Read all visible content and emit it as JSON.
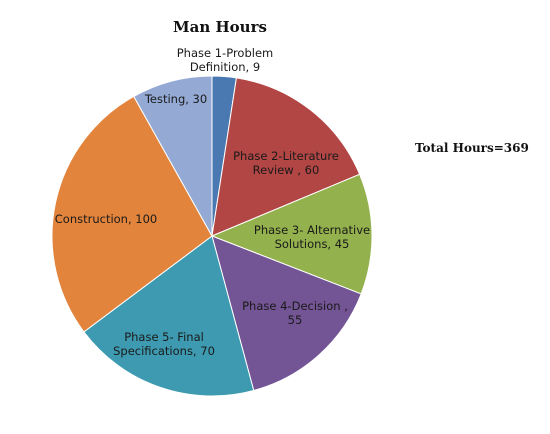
{
  "chart_data": {
    "type": "pie",
    "title": "Man Hours",
    "annotation": "Total Hours=369",
    "slices": [
      {
        "label": [
          "Phase 1-Problem",
          "Definition, 9"
        ],
        "value": 9,
        "color": "#4a78b0"
      },
      {
        "label": [
          "Phase 2-Literature",
          "Review , 60"
        ],
        "value": 60,
        "color": "#b24644"
      },
      {
        "label": [
          "Phase 3- Alternative",
          "Solutions, 45"
        ],
        "value": 45,
        "color": "#93b14c"
      },
      {
        "label": [
          "Phase 4-Decision ,",
          "55"
        ],
        "value": 55,
        "color": "#735494"
      },
      {
        "label": [
          "Phase 5- Final",
          "Specifications, 70"
        ],
        "value": 70,
        "color": "#3d9ab1"
      },
      {
        "label": [
          "Construction, 100"
        ],
        "value": 100,
        "color": "#e2843c"
      },
      {
        "label": [
          "Testing, 30"
        ],
        "value": 30,
        "color": "#94aad4"
      }
    ],
    "legend": "none"
  }
}
